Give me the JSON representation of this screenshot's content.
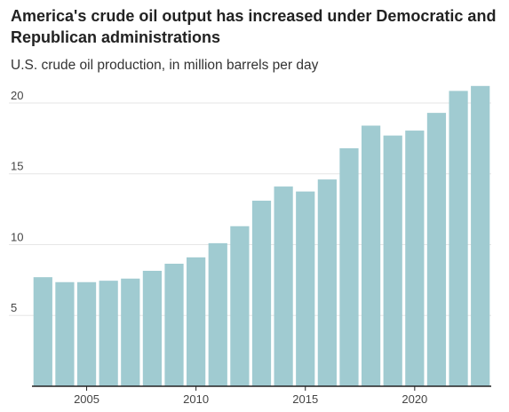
{
  "chart_data": {
    "type": "bar",
    "title": "America's crude oil output has increased under Democratic and Republican administrations",
    "subtitle": "U.S. crude oil production, in million barrels per day",
    "xlabel": "",
    "ylabel": "",
    "ylim": [
      0,
      21
    ],
    "y_ticks": [
      5,
      10,
      15,
      20
    ],
    "y_tick_labels": [
      "5",
      "10",
      "15",
      "20"
    ],
    "x_ticks": [
      2005,
      2010,
      2015,
      2020
    ],
    "x_tick_labels": [
      "2005",
      "2010",
      "2015",
      "2020"
    ],
    "grid": true,
    "bar_color": "#a0cbd1",
    "categories": [
      2003,
      2004,
      2005,
      2006,
      2007,
      2008,
      2009,
      2010,
      2011,
      2012,
      2013,
      2014,
      2015,
      2016,
      2017,
      2018,
      2019,
      2020,
      2021,
      2022,
      2023
    ],
    "values": [
      7.7,
      7.35,
      7.35,
      7.45,
      7.6,
      8.15,
      8.65,
      9.1,
      10.1,
      11.3,
      13.1,
      14.1,
      13.75,
      14.6,
      16.8,
      18.4,
      17.7,
      18.05,
      19.3,
      20.85,
      21.2
    ]
  }
}
